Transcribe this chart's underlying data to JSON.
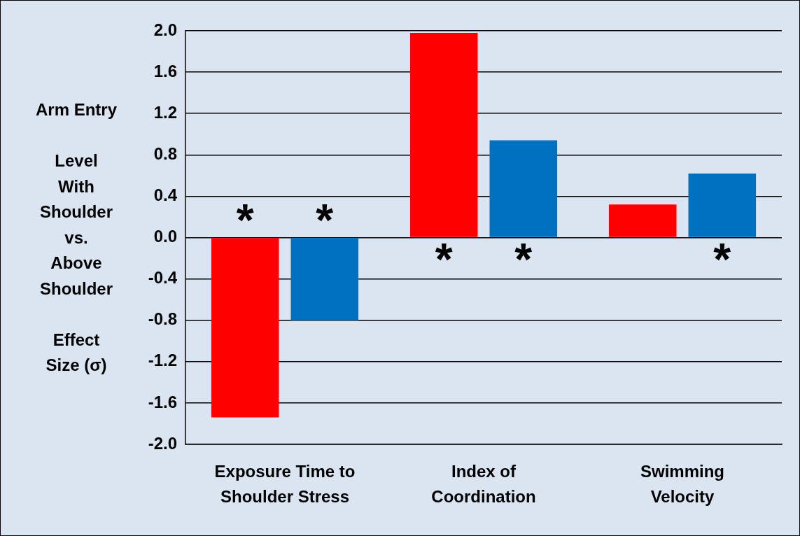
{
  "chart_data": {
    "type": "bar",
    "ylabel": "Arm Entry\n\nLevel\nWith\nShoulder\nvs.\nAbove\nShoulder\n\nEffect\nSize (σ)",
    "categories": [
      "Exposure Time to\nShoulder Stress",
      "Index of\nCoordination",
      "Swimming\nVelocity"
    ],
    "series": [
      {
        "color": "#ff0000",
        "values": [
          -1.74,
          1.98,
          0.32
        ],
        "value_labels": [
          "*",
          "*",
          null
        ]
      },
      {
        "color": "#0070c0",
        "values": [
          -0.8,
          0.94,
          0.62
        ],
        "value_labels": [
          "*",
          "*",
          "*"
        ]
      }
    ],
    "ylim": [
      -2.0,
      2.0
    ],
    "yticks": [
      {
        "value": -2,
        "label": "-2.0"
      },
      {
        "value": -1.6,
        "label": "-1.6"
      },
      {
        "value": -1.2,
        "label": "-1.2"
      },
      {
        "value": -0.8,
        "label": "-0.8"
      },
      {
        "value": -0.4,
        "label": "-0.4"
      },
      {
        "value": 0,
        "label": "0.0"
      },
      {
        "value": 0.4,
        "label": "0.4"
      },
      {
        "value": 0.8,
        "label": "0.8"
      },
      {
        "value": 1.2,
        "label": "1.2"
      },
      {
        "value": 1.6,
        "label": "1.6"
      },
      {
        "value": 2,
        "label": "2.0"
      }
    ],
    "grid": "y",
    "legend": false
  }
}
